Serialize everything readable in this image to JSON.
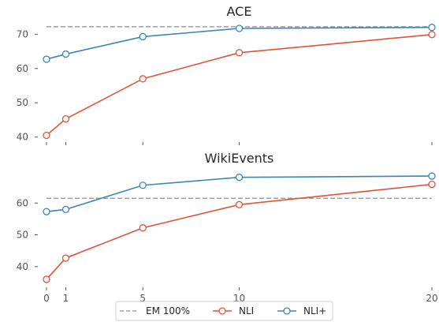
{
  "chart_data": [
    {
      "type": "line",
      "title": "ACE",
      "x": [
        0,
        1,
        5,
        10,
        20
      ],
      "xlabel": "",
      "ylabel": "",
      "ylim": [
        39,
        74
      ],
      "yticks": [
        40,
        50,
        60,
        70
      ],
      "grid": false,
      "baseline": {
        "name": "EM 100%",
        "value": 72.2,
        "color": "#a0a0a0"
      },
      "series": [
        {
          "name": "NLI",
          "color": "#e0533a",
          "values": [
            40.5,
            45.3,
            57.0,
            64.6,
            69.9
          ]
        },
        {
          "name": "NLI+",
          "color": "#3a86b5",
          "values": [
            62.7,
            64.2,
            69.3,
            71.7,
            72.0
          ]
        }
      ]
    },
    {
      "type": "line",
      "title": "WikiEvents",
      "x": [
        0,
        1,
        5,
        10,
        20
      ],
      "xticks": [
        0,
        1,
        5,
        10,
        20
      ],
      "xlabel": "",
      "ylabel": "",
      "ylim": [
        34,
        71
      ],
      "yticks": [
        40,
        50,
        60
      ],
      "grid": false,
      "baseline": {
        "name": "EM 100%",
        "value": 61.5,
        "color": "#a0a0a0"
      },
      "series": [
        {
          "name": "NLI",
          "color": "#e0533a",
          "values": [
            36.0,
            42.7,
            52.2,
            59.5,
            65.9
          ]
        },
        {
          "name": "NLI+",
          "color": "#3a86b5",
          "values": [
            57.3,
            58.0,
            65.6,
            68.1,
            68.5
          ]
        }
      ]
    }
  ],
  "legend": {
    "placement": "bottom-center",
    "items": [
      {
        "label": "EM 100%",
        "style": "dashed",
        "color": "#a0a0a0"
      },
      {
        "label": "NLI",
        "style": "line-marker",
        "color": "#e0533a"
      },
      {
        "label": "NLI+",
        "style": "line-marker",
        "color": "#3a86b5"
      }
    ]
  }
}
